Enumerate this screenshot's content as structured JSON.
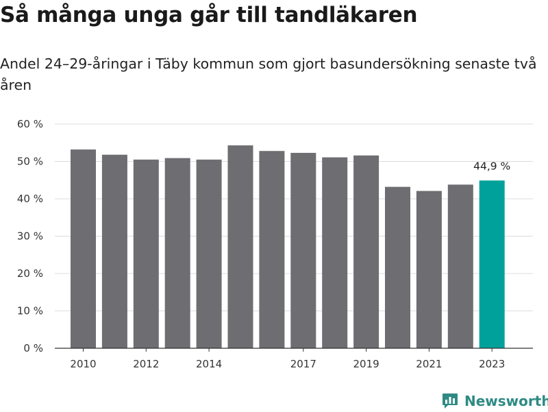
{
  "header": {
    "title": "Så många unga går till tandläkaren",
    "subtitle": "Andel 24–29-åringar i Täby kommun som gjort basundersökning senaste två åren"
  },
  "brand": {
    "name": "Newsworthy",
    "icon": "newsworthy-chart-icon",
    "color": "#2f8a84"
  },
  "colors": {
    "bar": "#6e6d72",
    "highlight": "#00a19a",
    "grid": "#dcdcdc",
    "axis": "#333333"
  },
  "chart_data": {
    "type": "bar",
    "categories": [
      "2010",
      "2011",
      "2012",
      "2013",
      "2014",
      "2015",
      "2016",
      "2017",
      "2018",
      "2019",
      "2020",
      "2021",
      "2022",
      "2023"
    ],
    "x_tick_labels": [
      "2010",
      "",
      "2012",
      "",
      "2014",
      "",
      "",
      "2017",
      "",
      "2019",
      "",
      "2021",
      "",
      "2023"
    ],
    "values": [
      53.2,
      51.8,
      50.5,
      50.9,
      50.5,
      54.3,
      52.8,
      52.3,
      51.1,
      51.6,
      43.2,
      42.1,
      43.8,
      44.9
    ],
    "highlight_index": 13,
    "value_labels": [
      "",
      "",
      "",
      "",
      "",
      "",
      "",
      "",
      "",
      "",
      "",
      "",
      "",
      "44,9 %"
    ],
    "ylim": [
      0,
      60
    ],
    "y_ticks": [
      0,
      10,
      20,
      30,
      40,
      50,
      60
    ],
    "y_tick_labels": [
      "0 %",
      "10 %",
      "20 %",
      "30 %",
      "40 %",
      "50 %",
      "60 %"
    ],
    "xlabel": "",
    "ylabel": "",
    "grid": true,
    "legend": "none"
  }
}
